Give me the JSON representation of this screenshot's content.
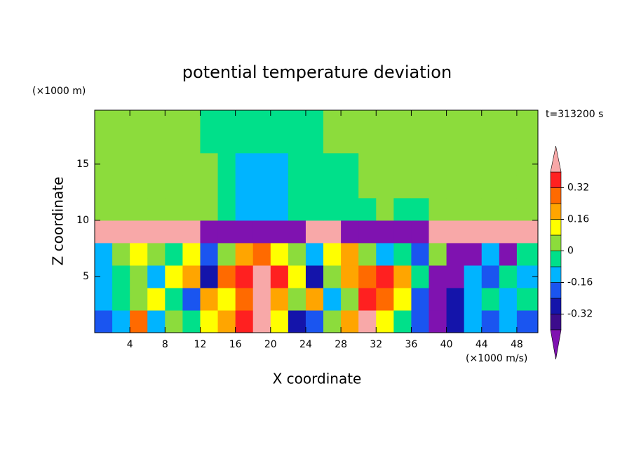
{
  "chart_data": {
    "type": "contour",
    "title": "potential temperature deviation",
    "x_label": "X coordinate",
    "y_label": "Z coordinate",
    "x_unit": "(×1000 m/s)",
    "y_unit": "(×1000 m)",
    "annotation": "t=313200 s",
    "xlim": [
      0,
      50.4
    ],
    "ylim": [
      0,
      19.8
    ],
    "xticks": [
      4,
      8,
      12,
      16,
      20,
      24,
      28,
      32,
      36,
      40,
      44,
      48
    ],
    "yticks": [
      5,
      10,
      15
    ],
    "x": [
      1,
      3,
      5,
      7,
      9,
      11,
      13,
      15,
      17,
      19,
      21,
      23,
      25,
      27,
      29,
      31,
      33,
      35,
      37,
      39,
      41,
      43,
      45,
      47,
      49
    ],
    "y": [
      1,
      3,
      5,
      7,
      9,
      11,
      13,
      15,
      17,
      19
    ],
    "z": [
      [
        -0.2,
        -0.12,
        0.28,
        -0.12,
        0.04,
        -0.04,
        0.12,
        0.2,
        0.36,
        0.5,
        0.12,
        -0.28,
        -0.2,
        0.04,
        0.2,
        0.5,
        0.12,
        -0.04,
        -0.2,
        -0.45,
        -0.3,
        -0.12,
        -0.2,
        -0.12,
        -0.2
      ],
      [
        -0.12,
        -0.04,
        0.04,
        0.12,
        -0.04,
        -0.2,
        0.2,
        0.12,
        0.28,
        0.5,
        0.2,
        0.04,
        0.2,
        -0.12,
        0.04,
        0.36,
        0.28,
        0.12,
        -0.2,
        -0.45,
        -0.3,
        -0.12,
        -0.04,
        -0.12,
        -0.04
      ],
      [
        -0.12,
        -0.04,
        0.04,
        -0.12,
        0.12,
        0.2,
        -0.3,
        0.28,
        0.36,
        0.5,
        0.36,
        0.12,
        -0.28,
        0.04,
        0.2,
        0.28,
        0.36,
        0.2,
        -0.04,
        -0.45,
        -0.45,
        -0.12,
        -0.2,
        -0.04,
        -0.12
      ],
      [
        -0.12,
        0.04,
        0.12,
        0.04,
        -0.04,
        0.12,
        -0.2,
        0.04,
        0.2,
        0.28,
        0.12,
        0.04,
        -0.12,
        0.12,
        0.2,
        0.04,
        -0.12,
        -0.04,
        -0.2,
        0.04,
        -0.45,
        -0.45,
        -0.12,
        -0.45,
        -0.04
      ],
      [
        0.5,
        0.5,
        0.5,
        0.5,
        0.5,
        0.5,
        -0.5,
        -0.5,
        -0.5,
        -0.5,
        -0.5,
        -0.5,
        0.5,
        0.5,
        -0.5,
        -0.5,
        -0.5,
        -0.5,
        -0.5,
        0.5,
        0.5,
        0.5,
        0.5,
        0.5,
        0.5
      ],
      [
        0.04,
        0.04,
        0.04,
        0.04,
        0.04,
        0.04,
        0.04,
        -0.04,
        -0.12,
        -0.12,
        -0.12,
        -0.04,
        -0.04,
        -0.04,
        -0.04,
        -0.04,
        0.04,
        -0.04,
        -0.04,
        0.04,
        0.04,
        0.04,
        0.04,
        0.04,
        0.04
      ],
      [
        0.04,
        0.04,
        0.04,
        0.04,
        0.04,
        0.04,
        0.04,
        -0.04,
        -0.12,
        -0.12,
        -0.12,
        -0.04,
        -0.04,
        -0.04,
        -0.04,
        0.04,
        0.04,
        0.04,
        0.04,
        0.04,
        0.04,
        0.04,
        0.04,
        0.04,
        0.04
      ],
      [
        0.04,
        0.04,
        0.04,
        0.04,
        0.04,
        0.04,
        0.04,
        -0.04,
        -0.12,
        -0.12,
        -0.12,
        -0.04,
        -0.04,
        -0.04,
        -0.04,
        0.04,
        0.04,
        0.04,
        0.04,
        0.04,
        0.04,
        0.04,
        0.04,
        0.04,
        0.04
      ],
      [
        0.04,
        0.04,
        0.04,
        0.04,
        0.04,
        0.04,
        -0.04,
        -0.04,
        -0.04,
        -0.04,
        -0.04,
        -0.04,
        -0.04,
        0.04,
        0.04,
        0.04,
        0.04,
        0.04,
        0.04,
        0.04,
        0.04,
        0.04,
        0.04,
        0.04,
        0.04
      ],
      [
        0.04,
        0.04,
        0.04,
        0.04,
        0.04,
        0.04,
        -0.04,
        -0.04,
        -0.04,
        -0.04,
        -0.04,
        -0.04,
        -0.04,
        0.04,
        0.04,
        0.04,
        0.04,
        0.04,
        0.04,
        0.04,
        0.04,
        0.04,
        0.04,
        0.04,
        0.04
      ]
    ],
    "levels": [
      -0.4,
      -0.32,
      -0.24,
      -0.16,
      -0.08,
      0,
      0.08,
      0.16,
      0.24,
      0.32,
      0.4
    ],
    "colors": [
      "#7f12b0",
      "#3c0c8c",
      "#1414aa",
      "#1a55f0",
      "#00b4ff",
      "#00e08a",
      "#8cdc3c",
      "#ffff00",
      "#ffa500",
      "#ff6a00",
      "#ff2020",
      "#f8a8a8"
    ],
    "cbar_ticks": [
      -0.32,
      -0.16,
      0,
      0.16,
      0.32
    ]
  }
}
